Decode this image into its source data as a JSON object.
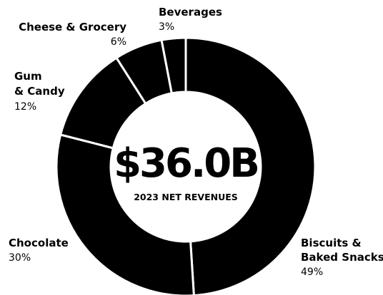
{
  "chart_data": {
    "type": "pie",
    "style": "donut",
    "center": {
      "total": "$36.0B",
      "caption": "2023 NET REVENUES"
    },
    "slices": [
      {
        "label_lines": [
          "Biscuits &",
          "Baked Snacks"
        ],
        "value": 49,
        "value_text": "49%"
      },
      {
        "label_lines": [
          "Chocolate"
        ],
        "value": 30,
        "value_text": "30%"
      },
      {
        "label_lines": [
          "Gum",
          "& Candy"
        ],
        "value": 12,
        "value_text": "12%"
      },
      {
        "label_lines": [
          "Cheese & Grocery"
        ],
        "value": 6,
        "value_text": "6%"
      },
      {
        "label_lines": [
          "Beverages"
        ],
        "value": 3,
        "value_text": "3%"
      }
    ],
    "colors": {
      "slice_fill": "#000000",
      "separator": "#ffffff",
      "background": "#ffffff"
    }
  }
}
